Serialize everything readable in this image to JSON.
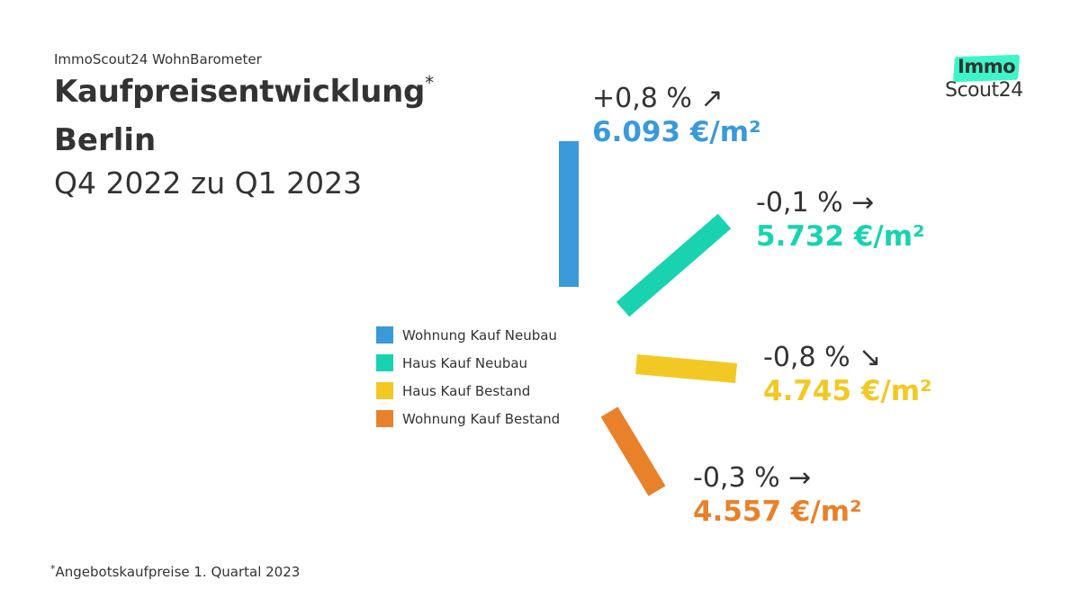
{
  "header": {
    "supertitle": "ImmoScout24 WohnBarometer",
    "title_line1": "Kaufpreisentwicklung",
    "title_mark": "*",
    "title_line2": "Berlin",
    "title_line3": "Q4 2022 zu Q1 2023"
  },
  "footnote": {
    "mark": "*",
    "text": "Angebotskaufpreise 1. Quartal 2023"
  },
  "logo": {
    "line1": "Immo",
    "line2": "Scout24",
    "accent_color": "#3DF5C8"
  },
  "chart_data": {
    "type": "bar",
    "title": "Kaufpreisentwicklung",
    "subtitle": "Q4 2022 zu Q1 2023",
    "unit": "€/m²",
    "legend_position": "center",
    "categories": [
      "Wohnung Kauf Neubau",
      "Haus Kauf Neubau",
      "Haus Kauf Bestand",
      "Wohnung Kauf Bestand"
    ],
    "series": [
      {
        "name": "Wohnung Kauf Neubau",
        "color": "#3A9AD9",
        "change_label": "+0,8 %",
        "change_pct": 0.8,
        "trend": "up",
        "arrow": "↗",
        "price_label": "6.093 €/m²",
        "price": 6093
      },
      {
        "name": "Haus Kauf Neubau",
        "color": "#19D3B0",
        "change_label": "-0,1 %",
        "change_pct": -0.1,
        "trend": "flat",
        "arrow": "→",
        "price_label": "5.732 €/m²",
        "price": 5732
      },
      {
        "name": "Haus Kauf Bestand",
        "color": "#F2C924",
        "change_label": "-0,8 %",
        "change_pct": -0.8,
        "trend": "down",
        "arrow": "↘",
        "price_label": "4.745 €/m²",
        "price": 4745
      },
      {
        "name": "Wohnung Kauf Bestand",
        "color": "#E8812A",
        "change_label": "-0,3 %",
        "change_pct": -0.3,
        "trend": "flat",
        "arrow": "→",
        "price_label": "4.557 €/m²",
        "price": 4557
      }
    ]
  }
}
